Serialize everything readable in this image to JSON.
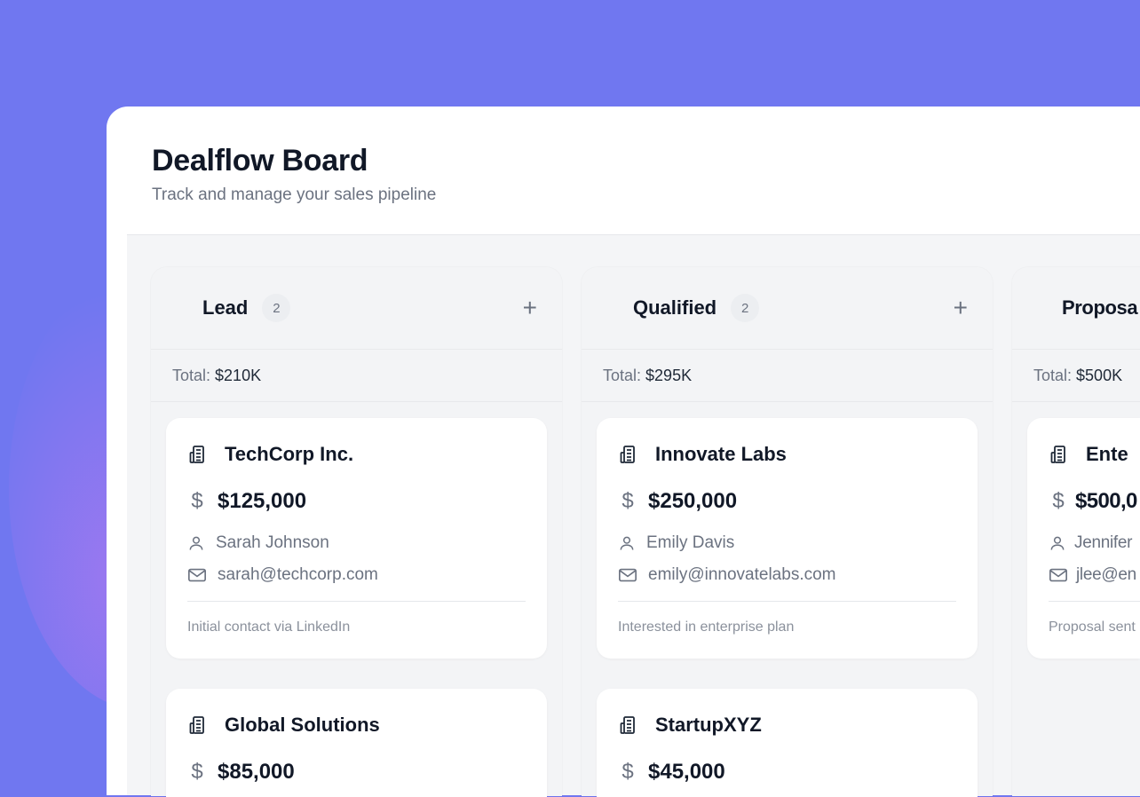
{
  "header": {
    "title": "Dealflow Board",
    "subtitle": "Track and manage your sales pipeline"
  },
  "colors": {
    "background": "#7077f0",
    "board": "#f4f5f7",
    "text": "#111827",
    "muted": "#6b7280"
  },
  "columns": [
    {
      "name": "Lead",
      "count": "2",
      "total_label": "Total:",
      "total": "$210K",
      "add_icon": "plus-icon",
      "cards": [
        {
          "company": "TechCorp Inc.",
          "amount": "$125,000",
          "contact": "Sarah Johnson",
          "email": "sarah@techcorp.com",
          "note": "Initial contact via LinkedIn"
        },
        {
          "company": "Global Solutions",
          "amount": "$85,000"
        }
      ]
    },
    {
      "name": "Qualified",
      "count": "2",
      "total_label": "Total:",
      "total": "$295K",
      "add_icon": "plus-icon",
      "cards": [
        {
          "company": "Innovate Labs",
          "amount": "$250,000",
          "contact": "Emily Davis",
          "email": "emily@innovatelabs.com",
          "note": "Interested in enterprise plan"
        },
        {
          "company": "StartupXYZ",
          "amount": "$45,000"
        }
      ]
    },
    {
      "name": "Proposa",
      "total_label": "Total:",
      "total": "$500K",
      "cards": [
        {
          "company": "Ente",
          "amount": "$500,0",
          "contact": "Jennifer",
          "email": "jlee@en",
          "note": "Proposal sent"
        }
      ]
    }
  ],
  "icons": {
    "company": "building-icon",
    "amount": "dollar-icon",
    "contact": "user-icon",
    "email": "mail-icon",
    "add": "plus-icon"
  },
  "dollar_glyph": "$",
  "plus_glyph": "+"
}
